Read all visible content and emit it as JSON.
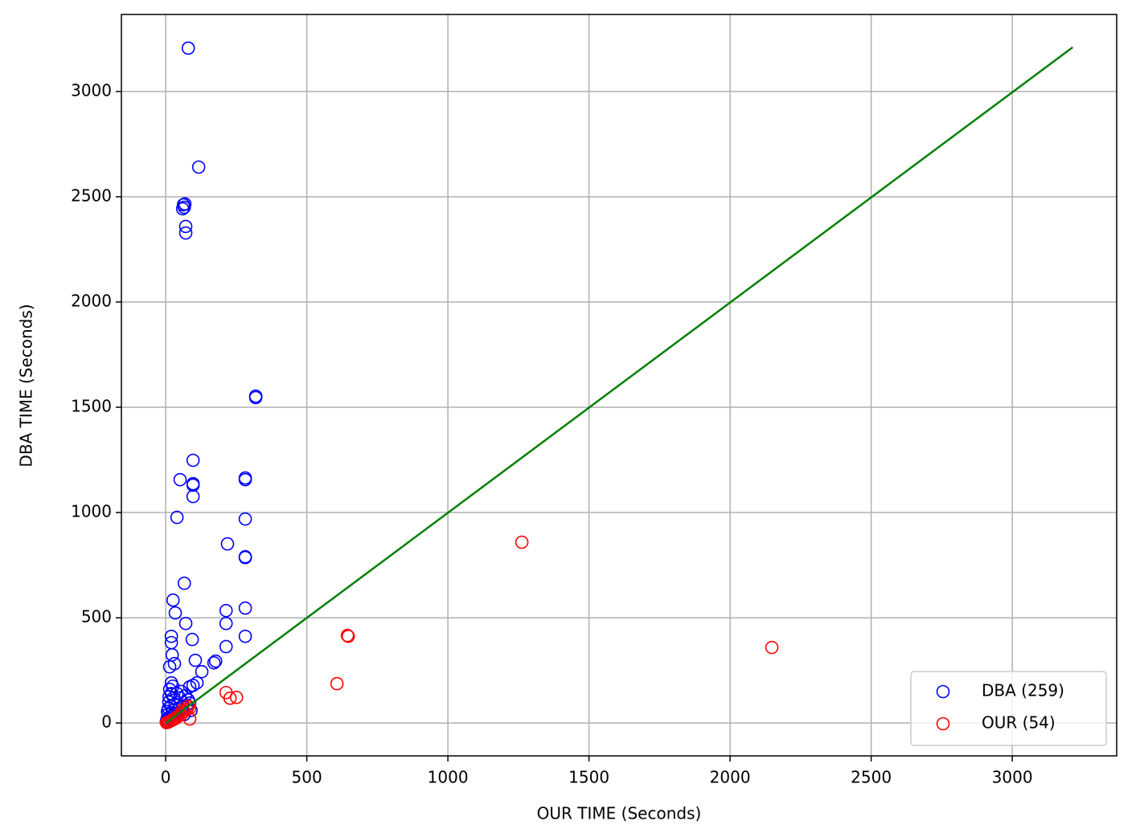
{
  "chart_data": {
    "type": "scatter",
    "xlabel": "OUR TIME (Seconds)",
    "ylabel": "DBA TIME (Seconds)",
    "xlim": [
      -157,
      3370
    ],
    "ylim": [
      -156,
      3366
    ],
    "xticks": [
      0,
      500,
      1000,
      1500,
      2000,
      2500,
      3000
    ],
    "yticks": [
      0,
      500,
      1000,
      1500,
      2000,
      2500,
      3000
    ],
    "grid": true,
    "legend": "lower right",
    "series": [
      {
        "name": "DBA (259)",
        "color": "blue",
        "x": [
          80,
          117,
          63,
          66,
          60,
          68,
          71,
          71,
          319,
          319,
          97,
          51,
          97,
          97,
          97,
          282,
          282,
          40,
          282,
          219,
          282,
          282,
          66,
          26,
          214,
          282,
          34,
          71,
          214,
          20,
          94,
          20,
          282,
          214,
          23,
          105,
          31,
          177,
          171,
          14,
          128,
          111,
          97,
          20,
          85,
          14,
          20,
          28,
          11,
          34,
          26,
          45,
          60,
          80,
          70,
          55,
          85,
          90,
          8,
          5,
          3,
          15,
          38,
          22,
          10,
          18,
          30,
          50,
          65,
          75,
          40,
          12,
          25,
          6,
          2
        ],
        "values": [
          3206,
          2641,
          2462,
          2450,
          2443,
          2466,
          2359,
          2328,
          1553,
          1546,
          1248,
          1156,
          1137,
          1130,
          1076,
          1164,
          1156,
          977,
          969,
          851,
          790,
          786,
          664,
          584,
          534,
          546,
          523,
          473,
          473,
          412,
          397,
          382,
          412,
          363,
          324,
          298,
          282,
          294,
          286,
          267,
          244,
          191,
          179,
          191,
          172,
          160,
          140,
          120,
          100,
          90,
          60,
          50,
          75,
          110,
          130,
          150,
          95,
          60,
          40,
          20,
          10,
          30,
          25,
          15,
          70,
          80,
          45,
          120,
          40,
          85,
          140,
          125,
          175,
          55,
          5
        ]
      },
      {
        "name": "OUR (54)",
        "color": "red",
        "x": [
          1262,
          2148,
          644,
          647,
          607,
          214,
          228,
          251,
          85,
          3,
          10,
          20,
          30,
          40,
          55,
          65,
          75,
          85,
          15,
          25,
          45,
          60,
          80,
          5,
          35
        ],
        "values": [
          859,
          359,
          416,
          412,
          187,
          145,
          118,
          122,
          19,
          2,
          5,
          12,
          20,
          28,
          40,
          55,
          65,
          70,
          8,
          15,
          35,
          62,
          80,
          3,
          22
        ]
      }
    ],
    "reference_line": {
      "color": "green",
      "x": [
        0,
        3214
      ],
      "values": [
        0,
        3210
      ]
    }
  }
}
